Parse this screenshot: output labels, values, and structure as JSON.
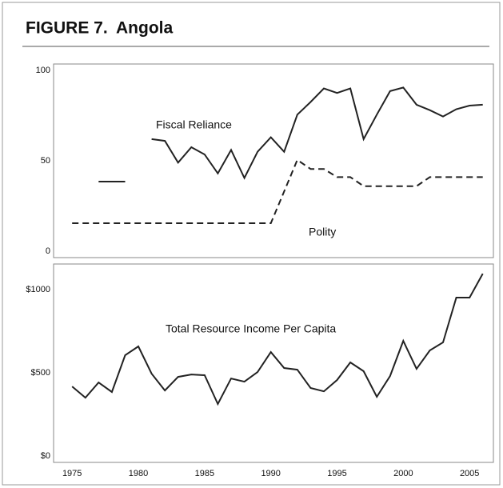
{
  "header": {
    "label": "FIGURE 7.",
    "title": "Angola"
  },
  "chart_data": [
    {
      "type": "line",
      "x": [
        1975,
        1976,
        1977,
        1978,
        1979,
        1980,
        1981,
        1982,
        1983,
        1984,
        1985,
        1986,
        1987,
        1988,
        1989,
        1990,
        1991,
        1992,
        1993,
        1994,
        1995,
        1996,
        1997,
        1998,
        1999,
        2000,
        2001,
        2002,
        2003,
        2004,
        2005,
        2006
      ],
      "xlim": [
        1973.6,
        2006.8
      ],
      "ylim": [
        -3.5,
        103.5
      ],
      "yticks": [
        0,
        50,
        100
      ],
      "series": [
        {
          "name": "Fiscal Reliance",
          "color": "#222",
          "style": "solid",
          "values": [
            null,
            null,
            38.5,
            38.5,
            38.5,
            null,
            62,
            61,
            49,
            57.5,
            53.5,
            43,
            56,
            40.5,
            55,
            63,
            55,
            75.5,
            82.5,
            90,
            87.5,
            90,
            62,
            75.5,
            88.5,
            90.5,
            81,
            78,
            74.5,
            78.5,
            80.5,
            81
          ]
        },
        {
          "name": "Polity",
          "color": "#222",
          "style": "dashed",
          "values": [
            15.5,
            15.5,
            15.5,
            15.5,
            15.5,
            15.5,
            15.5,
            15.5,
            15.5,
            15.5,
            15.5,
            15.5,
            15.5,
            15.5,
            15.5,
            15.5,
            33,
            50.5,
            45.5,
            45.5,
            41,
            41,
            36,
            36,
            36,
            36,
            36,
            41,
            41,
            41,
            41,
            41
          ]
        }
      ]
    },
    {
      "type": "line",
      "x": [
        1975,
        1976,
        1977,
        1978,
        1979,
        1980,
        1981,
        1982,
        1983,
        1984,
        1985,
        1986,
        1987,
        1988,
        1989,
        1990,
        1991,
        1992,
        1993,
        1994,
        1995,
        1996,
        1997,
        1998,
        1999,
        2000,
        2001,
        2002,
        2003,
        2004,
        2005,
        2006
      ],
      "xlim": [
        1973.6,
        2006.8
      ],
      "xticks": [
        1975,
        1980,
        1985,
        1990,
        1995,
        2000,
        2005
      ],
      "ylim": [
        -38,
        1154
      ],
      "yticks": [
        {
          "value": 0,
          "label": "$0"
        },
        {
          "value": 500,
          "label": "$500"
        },
        {
          "value": 1000,
          "label": "$1000"
        }
      ],
      "series": [
        {
          "name": "Total Resource Income Per Capita",
          "color": "#222",
          "style": "solid",
          "values": [
            418,
            351,
            442,
            385,
            606,
            659,
            495,
            394,
            476,
            490,
            486,
            313,
            466,
            447,
            505,
            625,
            529,
            519,
            409,
            389,
            457,
            563,
            510,
            356,
            481,
            692,
            524,
            635,
            683,
            952,
            952,
            1096
          ]
        }
      ]
    }
  ]
}
